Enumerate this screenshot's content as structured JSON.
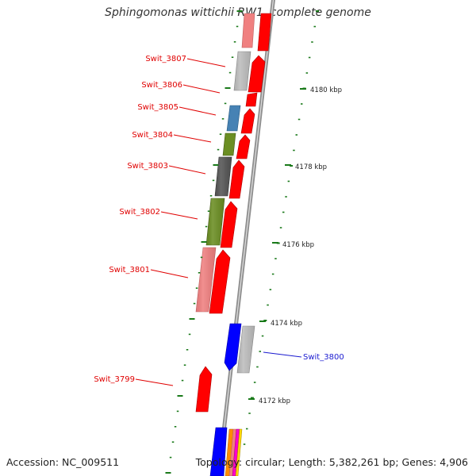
{
  "title": "Sphingomonas wittichii RW1, complete genome",
  "footer": {
    "accession": "Accession: NC_009511",
    "summary": "Topology: circular; Length: 5,382,261 bp; Genes: 4,906"
  },
  "colors": {
    "forward_cds": "#ff0000",
    "light_red": "#f08080",
    "gray": "#bdbdbd",
    "dark_gray": "#555555",
    "steel_blue": "#4682b4",
    "olive": "#6b8e23",
    "blue": "#0000ff",
    "tick_green": "#1a7a1a",
    "backbone": "#9a9a9a"
  },
  "genes": [
    {
      "id": "Swit_3807",
      "label_color": "red"
    },
    {
      "id": "Swit_3806",
      "label_color": "red"
    },
    {
      "id": "Swit_3805",
      "label_color": "red"
    },
    {
      "id": "Swit_3804",
      "label_color": "red"
    },
    {
      "id": "Swit_3803",
      "label_color": "red"
    },
    {
      "id": "Swit_3802",
      "label_color": "red"
    },
    {
      "id": "Swit_3801",
      "label_color": "red"
    },
    {
      "id": "Swit_3800",
      "label_color": "blue"
    },
    {
      "id": "Swit_3799",
      "label_color": "red"
    }
  ],
  "kbp_labels": [
    "4180 kbp",
    "4178 kbp",
    "4176 kbp",
    "4174 kbp",
    "4172 kbp"
  ]
}
